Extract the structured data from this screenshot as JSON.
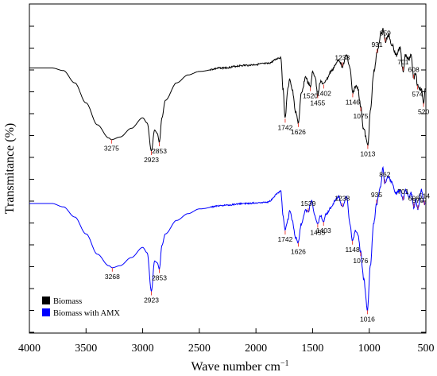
{
  "chart_data": {
    "type": "line",
    "title": "",
    "xlabel": "Wave number cm",
    "xlabel_superscript": "−1",
    "ylabel": "Transmitance (%)",
    "xlim": [
      4000,
      500
    ],
    "x_ticks": [
      "4000",
      "3500",
      "3000",
      "2500",
      "2000",
      "1500",
      "1000",
      "500"
    ],
    "grid": false,
    "legend": "bottom-left",
    "series": [
      {
        "name": "Biomass",
        "color": "#000000",
        "offset": "top",
        "points": [
          [
            3999,
            0.05
          ],
          [
            3800,
            0.05
          ],
          [
            3700,
            0.08
          ],
          [
            3600,
            0.22
          ],
          [
            3500,
            0.45
          ],
          [
            3400,
            0.7
          ],
          [
            3300,
            0.85
          ],
          [
            3275,
            0.87
          ],
          [
            3200,
            0.84
          ],
          [
            3100,
            0.74
          ],
          [
            3000,
            0.62
          ],
          [
            2960,
            0.68
          ],
          [
            2923,
            1.0
          ],
          [
            2895,
            0.76
          ],
          [
            2870,
            0.8
          ],
          [
            2853,
            0.9
          ],
          [
            2830,
            0.62
          ],
          [
            2800,
            0.42
          ],
          [
            2700,
            0.22
          ],
          [
            2600,
            0.13
          ],
          [
            2500,
            0.09
          ],
          [
            2300,
            0.05
          ],
          [
            2100,
            0.02
          ],
          [
            1900,
            0.0
          ],
          [
            1780,
            -0.07
          ],
          [
            1760,
            0.3
          ],
          [
            1742,
            0.63
          ],
          [
            1720,
            0.3
          ],
          [
            1700,
            0.18
          ],
          [
            1680,
            0.3
          ],
          [
            1650,
            0.55
          ],
          [
            1626,
            0.68
          ],
          [
            1600,
            0.35
          ],
          [
            1560,
            0.15
          ],
          [
            1540,
            0.22
          ],
          [
            1520,
            0.27
          ],
          [
            1500,
            0.1
          ],
          [
            1480,
            0.14
          ],
          [
            1455,
            0.35
          ],
          [
            1430,
            0.2
          ],
          [
            1402,
            0.24
          ],
          [
            1380,
            0.18
          ],
          [
            1330,
            0.08
          ],
          [
            1300,
            0.02
          ],
          [
            1270,
            -0.05
          ],
          [
            1238,
            0.03
          ],
          [
            1200,
            -0.1
          ],
          [
            1170,
            0.05
          ],
          [
            1146,
            0.34
          ],
          [
            1120,
            0.26
          ],
          [
            1100,
            0.28
          ],
          [
            1075,
            0.5
          ],
          [
            1050,
            0.75
          ],
          [
            1013,
            0.93
          ],
          [
            990,
            0.55
          ],
          [
            960,
            0.1
          ],
          [
            931,
            -0.12
          ],
          [
            900,
            -0.32
          ],
          [
            880,
            -0.4
          ],
          [
            859,
            -0.25
          ],
          [
            830,
            -0.33
          ],
          [
            800,
            -0.22
          ],
          [
            760,
            -0.1
          ],
          [
            730,
            -0.18
          ],
          [
            701,
            0.08
          ],
          [
            680,
            -0.1
          ],
          [
            650,
            -0.05
          ],
          [
            630,
            -0.12
          ],
          [
            608,
            0.17
          ],
          [
            590,
            0.1
          ],
          [
            574,
            0.25
          ],
          [
            540,
            0.3
          ],
          [
            520,
            0.45
          ],
          [
            505,
            0.3
          ]
        ]
      },
      {
        "name": "Biomass with AMX",
        "color": "#0000ff",
        "offset": "bottom",
        "points": [
          [
            3999,
            0.0
          ],
          [
            3800,
            0.0
          ],
          [
            3700,
            0.05
          ],
          [
            3600,
            0.2
          ],
          [
            3500,
            0.45
          ],
          [
            3400,
            0.75
          ],
          [
            3300,
            0.92
          ],
          [
            3268,
            0.95
          ],
          [
            3200,
            0.92
          ],
          [
            3100,
            0.8
          ],
          [
            3000,
            0.65
          ],
          [
            2960,
            0.73
          ],
          [
            2923,
            1.3
          ],
          [
            2895,
            0.85
          ],
          [
            2870,
            0.88
          ],
          [
            2853,
            0.97
          ],
          [
            2830,
            0.62
          ],
          [
            2800,
            0.45
          ],
          [
            2700,
            0.25
          ],
          [
            2600,
            0.15
          ],
          [
            2500,
            0.08
          ],
          [
            2300,
            0.03
          ],
          [
            2100,
            0.0
          ],
          [
            1900,
            -0.02
          ],
          [
            1780,
            -0.18
          ],
          [
            1760,
            0.2
          ],
          [
            1742,
            0.4
          ],
          [
            1720,
            0.25
          ],
          [
            1700,
            0.1
          ],
          [
            1680,
            0.25
          ],
          [
            1650,
            0.5
          ],
          [
            1626,
            0.58
          ],
          [
            1600,
            0.3
          ],
          [
            1560,
            0.1
          ],
          [
            1539,
            0.13
          ],
          [
            1510,
            -0.05
          ],
          [
            1480,
            0.18
          ],
          [
            1455,
            0.3
          ],
          [
            1430,
            0.18
          ],
          [
            1403,
            0.27
          ],
          [
            1380,
            0.15
          ],
          [
            1330,
            0.05
          ],
          [
            1300,
            -0.05
          ],
          [
            1270,
            -0.1
          ],
          [
            1238,
            0.05
          ],
          [
            1200,
            -0.1
          ],
          [
            1170,
            0.3
          ],
          [
            1148,
            0.55
          ],
          [
            1120,
            0.4
          ],
          [
            1100,
            0.45
          ],
          [
            1076,
            0.72
          ],
          [
            1050,
            1.1
          ],
          [
            1016,
            1.58
          ],
          [
            990,
            0.9
          ],
          [
            960,
            0.3
          ],
          [
            935,
            0.0
          ],
          [
            900,
            -0.25
          ],
          [
            880,
            -0.52
          ],
          [
            862,
            -0.3
          ],
          [
            830,
            -0.4
          ],
          [
            800,
            -0.3
          ],
          [
            760,
            -0.15
          ],
          [
            730,
            -0.2
          ],
          [
            701,
            -0.05
          ],
          [
            680,
            -0.2
          ],
          [
            650,
            -0.1
          ],
          [
            630,
            -0.15
          ],
          [
            606,
            0.05
          ],
          [
            590,
            -0.05
          ],
          [
            570,
            0.08
          ],
          [
            540,
            -0.2
          ],
          [
            514,
            0.02
          ],
          [
            505,
            0.0
          ]
        ]
      }
    ],
    "annotations": {
      "series_0": [
        "3275",
        "2923",
        "2853",
        "1742",
        "1626",
        "1520",
        "1455",
        "1402",
        "1238",
        "1146",
        "1075",
        "1013",
        "931",
        "859",
        "701",
        "608",
        "574",
        "520"
      ],
      "series_1": [
        "3268",
        "2923",
        "2853",
        "1742",
        "1626",
        "1539",
        "1455",
        "1403",
        "1238",
        "1148",
        "1076",
        "1016",
        "935",
        "862",
        "701",
        "606",
        "570",
        "514"
      ]
    }
  }
}
